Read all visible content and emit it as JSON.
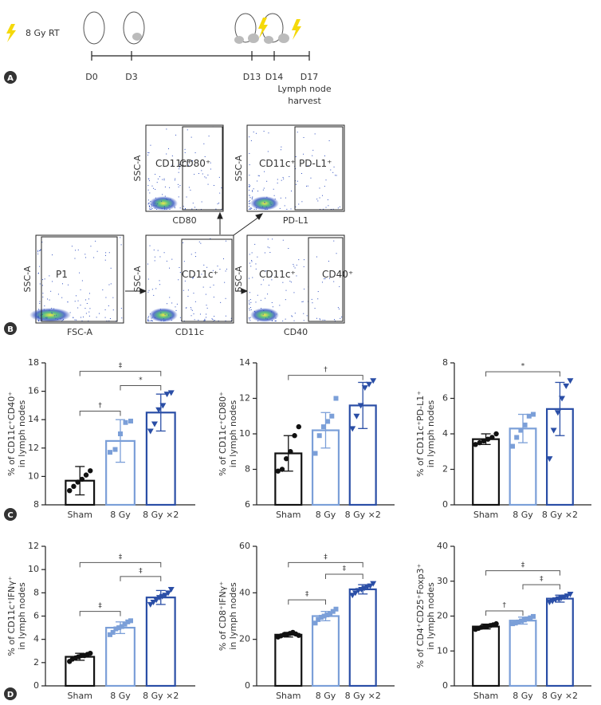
{
  "panel_labels": [
    "A",
    "B",
    "C",
    "D"
  ],
  "timeline": {
    "legend": "8 Gy RT",
    "days": [
      "D0",
      "D3",
      "D13",
      "D14",
      "D17"
    ],
    "harvest": [
      "Lymph node",
      "harvest"
    ]
  },
  "flow": {
    "plots": [
      {
        "x_label": "FSC-A",
        "y_label": "SSC-A",
        "gates": [
          "P1"
        ]
      },
      {
        "x_label": "CD11c",
        "y_label": "SSC-A",
        "gates": [
          "CD11c⁺"
        ]
      },
      {
        "x_label": "CD80",
        "y_label": "SSC-A",
        "gates": [
          "CD11c⁺",
          "CD80⁺"
        ]
      },
      {
        "x_label": "PD-L1",
        "y_label": "SSC-A",
        "gates": [
          "CD11c⁺",
          "PD-L1⁺"
        ]
      },
      {
        "x_label": "CD40",
        "y_label": "SSC-A",
        "gates": [
          "CD11c⁺",
          "CD40⁺"
        ]
      }
    ]
  },
  "chart_data": [
    {
      "type": "bar",
      "ylabel": [
        "% of CD11c⁺CD40⁺",
        "in lymph nodes"
      ],
      "categories": [
        "Sham",
        "8 Gy",
        "8 Gy ×2"
      ],
      "colors": [
        "#111111",
        "#7b9fd8",
        "#2a4ea6"
      ],
      "values": [
        9.7,
        12.5,
        14.5
      ],
      "errors": [
        1.0,
        1.5,
        1.3
      ],
      "points": [
        [
          9.0,
          9.3,
          9.6,
          9.8,
          10.1,
          10.4
        ],
        [
          11.7,
          11.9,
          13.0,
          13.8,
          13.9
        ],
        [
          13.2,
          13.7,
          14.7,
          15.0,
          15.8,
          15.9
        ]
      ],
      "ylim": [
        8,
        18
      ],
      "yticks": [
        8,
        10,
        12,
        14,
        16,
        18
      ],
      "brackets": [
        {
          "between": [
            "Sham",
            "8 Gy"
          ],
          "y": 14.6,
          "label": "†"
        },
        {
          "between": [
            "8 Gy",
            "8 Gy ×2"
          ],
          "y": 16.4,
          "label": "*"
        },
        {
          "between": [
            "Sham",
            "8 Gy ×2"
          ],
          "y": 17.4,
          "label": "‡"
        }
      ]
    },
    {
      "type": "bar",
      "ylabel": [
        "% of CD11c⁺CD80⁺",
        "in lymph nodes"
      ],
      "categories": [
        "Sham",
        "8 Gy",
        "8 Gy ×2"
      ],
      "colors": [
        "#111111",
        "#7b9fd8",
        "#2a4ea6"
      ],
      "values": [
        8.9,
        10.2,
        11.6
      ],
      "errors": [
        1.0,
        1.0,
        1.3
      ],
      "points": [
        [
          7.9,
          8.0,
          8.6,
          9.0,
          9.9,
          10.4
        ],
        [
          8.9,
          9.9,
          10.4,
          10.7,
          11.0,
          12.0
        ],
        [
          10.3,
          11.0,
          11.6,
          12.6,
          12.8,
          13.0
        ]
      ],
      "ylim": [
        6,
        14
      ],
      "yticks": [
        6,
        8,
        10,
        12,
        14
      ],
      "brackets": [
        {
          "between": [
            "Sham",
            "8 Gy ×2"
          ],
          "y": 13.3,
          "label": "†"
        }
      ]
    },
    {
      "type": "bar",
      "ylabel": [
        "% of CD11c⁺PD-L1⁺",
        "in lymph nodes"
      ],
      "categories": [
        "Sham",
        "8 Gy",
        "8 Gy ×2"
      ],
      "colors": [
        "#111111",
        "#7b9fd8",
        "#2a4ea6"
      ],
      "values": [
        3.7,
        4.3,
        5.4
      ],
      "errors": [
        0.3,
        0.8,
        1.5
      ],
      "points": [
        [
          3.4,
          3.5,
          3.6,
          3.7,
          3.8,
          4.0
        ],
        [
          3.3,
          3.8,
          4.2,
          4.5,
          5.0,
          5.1
        ],
        [
          2.6,
          4.2,
          5.2,
          6.0,
          6.7,
          7.0
        ]
      ],
      "ylim": [
        0,
        8
      ],
      "yticks": [
        0,
        2,
        4,
        6,
        8
      ],
      "brackets": [
        {
          "between": [
            "Sham",
            "8 Gy ×2"
          ],
          "y": 7.5,
          "label": "*"
        }
      ]
    },
    {
      "type": "bar",
      "ylabel": [
        "% of CD11c⁺IFNγ⁺",
        "in lymph nodes"
      ],
      "categories": [
        "Sham",
        "8 Gy",
        "8 Gy ×2"
      ],
      "colors": [
        "#111111",
        "#7b9fd8",
        "#2a4ea6"
      ],
      "values": [
        2.5,
        5.0,
        7.6
      ],
      "errors": [
        0.3,
        0.5,
        0.6
      ],
      "points": [
        [
          2.1,
          2.3,
          2.4,
          2.5,
          2.6,
          2.6,
          2.7,
          2.8
        ],
        [
          4.4,
          4.6,
          4.9,
          5.0,
          5.1,
          5.3,
          5.5,
          5.6
        ],
        [
          7.0,
          7.2,
          7.4,
          7.6,
          7.7,
          7.8,
          8.0,
          8.3
        ]
      ],
      "ylim": [
        0,
        12
      ],
      "yticks": [
        0,
        2,
        4,
        6,
        8,
        10,
        12
      ],
      "brackets": [
        {
          "between": [
            "Sham",
            "8 Gy"
          ],
          "y": 6.4,
          "label": "‡"
        },
        {
          "between": [
            "8 Gy",
            "8 Gy ×2"
          ],
          "y": 9.4,
          "label": "‡"
        },
        {
          "between": [
            "Sham",
            "8 Gy ×2"
          ],
          "y": 10.6,
          "label": "‡"
        }
      ]
    },
    {
      "type": "bar",
      "ylabel": [
        "% of CD8⁺IFNγ⁺",
        "in lymph nodes"
      ],
      "categories": [
        "Sham",
        "8 Gy",
        "8 Gy ×2"
      ],
      "colors": [
        "#111111",
        "#7b9fd8",
        "#2a4ea6"
      ],
      "values": [
        22,
        30,
        41.5
      ],
      "errors": [
        1,
        2,
        2
      ],
      "points": [
        [
          21,
          21.5,
          22,
          22,
          22.5,
          23,
          22.3,
          21.7
        ],
        [
          27,
          28.5,
          29.5,
          30,
          30.5,
          31,
          32,
          33
        ],
        [
          39,
          40,
          41,
          41.5,
          42,
          42.5,
          43,
          44
        ]
      ],
      "ylim": [
        0,
        60
      ],
      "yticks": [
        0,
        20,
        40,
        60
      ],
      "brackets": [
        {
          "between": [
            "Sham",
            "8 Gy"
          ],
          "y": 37,
          "label": "‡"
        },
        {
          "between": [
            "8 Gy",
            "8 Gy ×2"
          ],
          "y": 48,
          "label": "‡"
        },
        {
          "between": [
            "Sham",
            "8 Gy ×2"
          ],
          "y": 53,
          "label": "‡"
        }
      ]
    },
    {
      "type": "bar",
      "ylabel": [
        "% of CD4⁺CD25⁺Foxp3⁺",
        "in lymph nodes"
      ],
      "categories": [
        "Sham",
        "8 Gy",
        "8 Gy ×2"
      ],
      "colors": [
        "#111111",
        "#7b9fd8",
        "#2a4ea6"
      ],
      "values": [
        17,
        18.7,
        25
      ],
      "errors": [
        0.7,
        1,
        1
      ],
      "points": [
        [
          16.2,
          16.5,
          16.8,
          17,
          17.1,
          17.3,
          17.5,
          17.8
        ],
        [
          17.8,
          18,
          18.3,
          18.6,
          18.9,
          19.2,
          19.5,
          19.9
        ],
        [
          24,
          24.3,
          24.7,
          25,
          25.2,
          25.5,
          25.8,
          26.3
        ]
      ],
      "ylim": [
        0,
        40
      ],
      "yticks": [
        0,
        10,
        20,
        30,
        40
      ],
      "brackets": [
        {
          "between": [
            "Sham",
            "8 Gy"
          ],
          "y": 21.5,
          "label": "†"
        },
        {
          "between": [
            "8 Gy",
            "8 Gy ×2"
          ],
          "y": 29,
          "label": "‡"
        },
        {
          "between": [
            "Sham",
            "8 Gy ×2"
          ],
          "y": 33,
          "label": "‡"
        }
      ]
    }
  ]
}
